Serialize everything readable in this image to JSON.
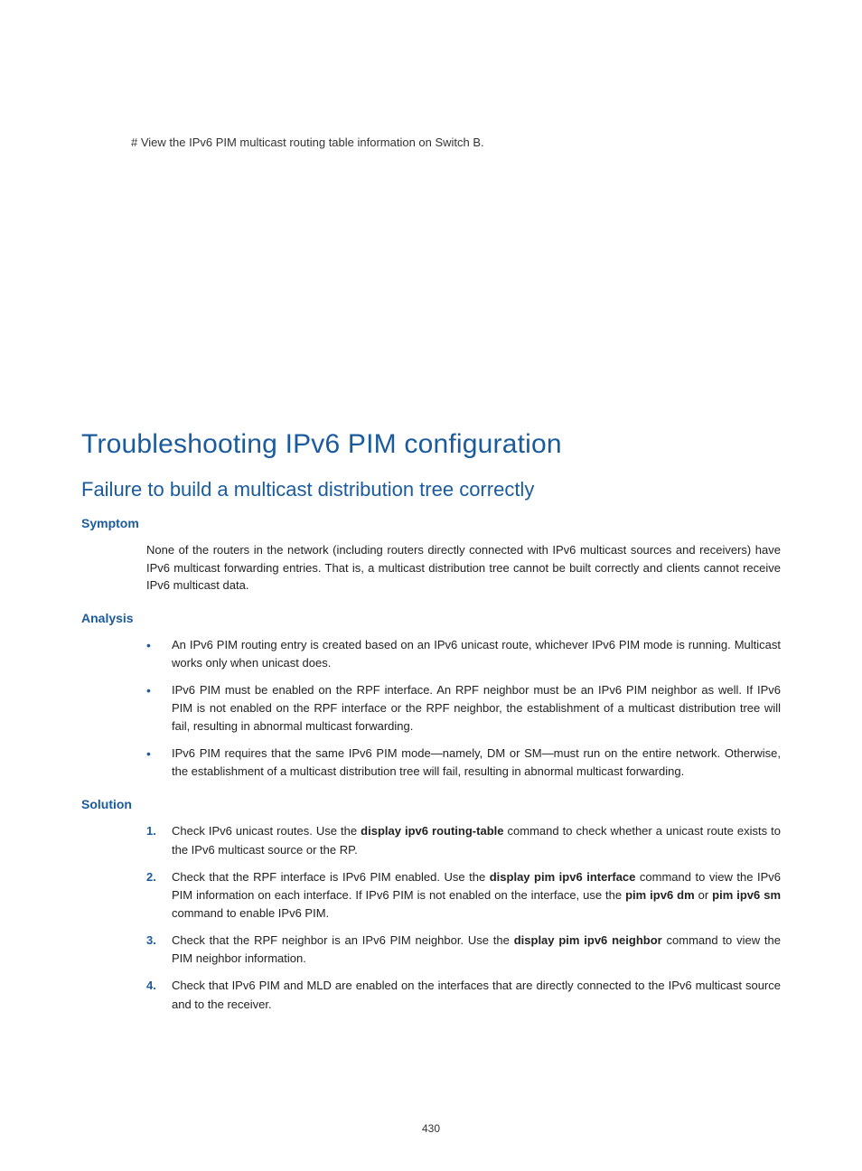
{
  "colors": {
    "heading": "#1a5b9e",
    "body": "#222222",
    "background": "#ffffff"
  },
  "typography": {
    "h1_fontsize": 30,
    "h2_fontsize": 22,
    "h3_fontsize": 14,
    "body_fontsize": 13,
    "font_family": "Arial"
  },
  "intro": "# View the IPv6 PIM multicast routing table information on Switch B.",
  "h1": "Troubleshooting IPv6 PIM configuration",
  "h2": "Failure to build a multicast distribution tree correctly",
  "symptom": {
    "heading": "Symptom",
    "text": "None of the routers in the network (including routers directly connected with IPv6 multicast sources and receivers) have IPv6 multicast forwarding entries. That is, a multicast distribution tree cannot be built correctly and clients cannot receive IPv6 multicast data."
  },
  "analysis": {
    "heading": "Analysis",
    "items": [
      "An IPv6 PIM routing entry is created based on an IPv6 unicast route, whichever IPv6 PIM mode is running. Multicast works only when unicast does.",
      "IPv6 PIM must be enabled on the RPF interface. An RPF neighbor must be an IPv6 PIM neighbor as well. If IPv6 PIM is not enabled on the RPF interface or the RPF neighbor, the establishment of a multicast distribution tree will fail, resulting in abnormal multicast forwarding.",
      "IPv6 PIM requires that the same IPv6 PIM mode—namely, DM or SM—must run on the entire network. Otherwise, the establishment of a multicast distribution tree will fail, resulting in abnormal multicast forwarding."
    ]
  },
  "solution": {
    "heading": "Solution",
    "items": [
      {
        "pre": "Check IPv6 unicast routes. Use the ",
        "cmd1": "display ipv6 routing-table",
        "mid1": " command to check whether a unicast route exists to the IPv6 multicast source or the RP.",
        "cmd2": "",
        "mid2": "",
        "cmd3": "",
        "post": ""
      },
      {
        "pre": "Check that the RPF interface is IPv6 PIM enabled. Use the ",
        "cmd1": "display pim ipv6 interface",
        "mid1": " command to view the IPv6 PIM information on each interface. If IPv6 PIM is not enabled on the interface, use the ",
        "cmd2": "pim ipv6 dm",
        "mid2": " or ",
        "cmd3": "pim ipv6 sm",
        "post": " command to enable IPv6 PIM."
      },
      {
        "pre": "Check that the RPF neighbor is an IPv6 PIM neighbor. Use the ",
        "cmd1": "display pim ipv6 neighbor",
        "mid1": " command to view the PIM neighbor information.",
        "cmd2": "",
        "mid2": "",
        "cmd3": "",
        "post": ""
      },
      {
        "pre": "Check that IPv6 PIM and MLD are enabled on the interfaces that are directly connected to the IPv6 multicast source and to the receiver.",
        "cmd1": "",
        "mid1": "",
        "cmd2": "",
        "mid2": "",
        "cmd3": "",
        "post": ""
      }
    ]
  },
  "page_number": "430"
}
